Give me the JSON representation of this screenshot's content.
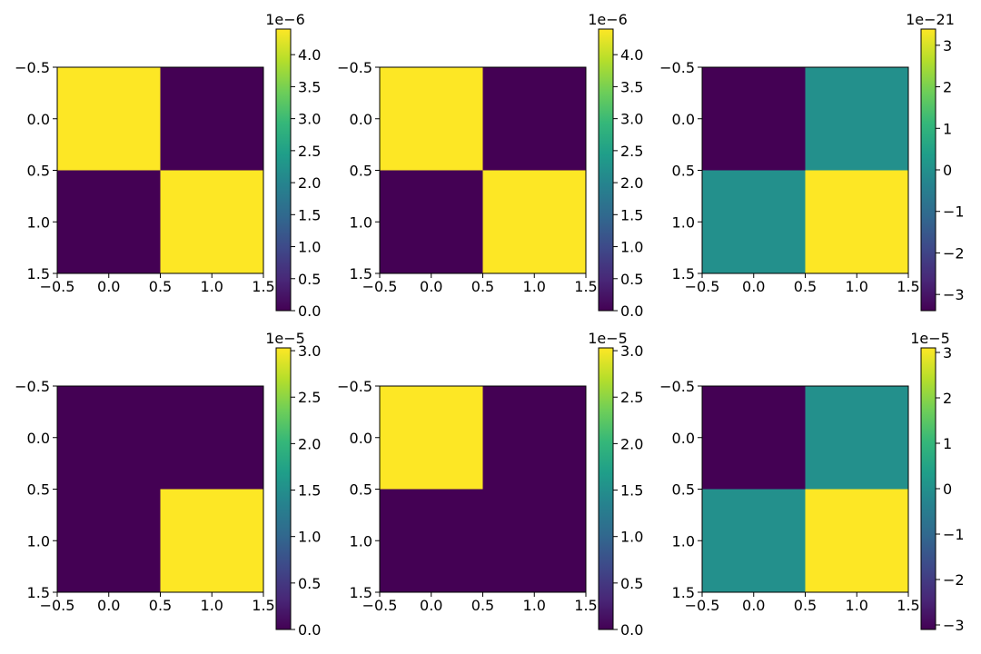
{
  "chart_data": [
    {
      "type": "heatmap",
      "title": "",
      "rows": 2,
      "cols": 2,
      "values": [
        [
          4.4e-06,
          0.0
        ],
        [
          0.0,
          4.4e-06
        ]
      ],
      "xticks": [
        "−0.5",
        "0.0",
        "0.5",
        "1.0",
        "1.5"
      ],
      "yticks": [
        "−0.5",
        "0.0",
        "0.5",
        "1.0",
        "1.5"
      ],
      "xlim": [
        -0.5,
        1.5
      ],
      "ylim": [
        1.5,
        -0.5
      ],
      "colorbar": {
        "range": [
          0.0,
          4.4
        ],
        "ticks": [
          0.0,
          0.5,
          1.0,
          1.5,
          2.0,
          2.5,
          3.0,
          3.5,
          4.0
        ],
        "labels": [
          "0.0",
          "0.5",
          "1.0",
          "1.5",
          "2.0",
          "2.5",
          "3.0",
          "3.5",
          "4.0"
        ],
        "offset_text": "1e−6"
      }
    },
    {
      "type": "heatmap",
      "title": "",
      "rows": 2,
      "cols": 2,
      "values": [
        [
          4.4e-06,
          0.0
        ],
        [
          0.0,
          4.4e-06
        ]
      ],
      "xticks": [
        "−0.5",
        "0.0",
        "0.5",
        "1.0",
        "1.5"
      ],
      "yticks": [
        "−0.5",
        "0.0",
        "0.5",
        "1.0",
        "1.5"
      ],
      "xlim": [
        -0.5,
        1.5
      ],
      "ylim": [
        1.5,
        -0.5
      ],
      "colorbar": {
        "range": [
          0.0,
          4.4
        ],
        "ticks": [
          0.0,
          0.5,
          1.0,
          1.5,
          2.0,
          2.5,
          3.0,
          3.5,
          4.0
        ],
        "labels": [
          "0.0",
          "0.5",
          "1.0",
          "1.5",
          "2.0",
          "2.5",
          "3.0",
          "3.5",
          "4.0"
        ],
        "offset_text": "1e−6"
      }
    },
    {
      "type": "heatmap",
      "title": "",
      "rows": 2,
      "cols": 2,
      "values": [
        [
          -3.39e-21,
          0.0
        ],
        [
          0.0,
          3.39e-21
        ]
      ],
      "xticks": [
        "−0.5",
        "0.0",
        "0.5",
        "1.0",
        "1.5"
      ],
      "yticks": [
        "−0.5",
        "0.0",
        "0.5",
        "1.0",
        "1.5"
      ],
      "xlim": [
        -0.5,
        1.5
      ],
      "ylim": [
        1.5,
        -0.5
      ],
      "colorbar": {
        "range": [
          -3.39,
          3.39
        ],
        "ticks": [
          -3,
          -2,
          -1,
          0,
          1,
          2,
          3
        ],
        "labels": [
          "−3",
          "−2",
          "−1",
          "0",
          "1",
          "2",
          "3"
        ],
        "offset_text": "1e−21"
      }
    },
    {
      "type": "heatmap",
      "title": "",
      "rows": 2,
      "cols": 2,
      "values": [
        [
          0.0,
          0.0
        ],
        [
          0.0,
          3.03e-05
        ]
      ],
      "xticks": [
        "−0.5",
        "0.0",
        "0.5",
        "1.0",
        "1.5"
      ],
      "yticks": [
        "−0.5",
        "0.0",
        "0.5",
        "1.0",
        "1.5"
      ],
      "xlim": [
        -0.5,
        1.5
      ],
      "ylim": [
        1.5,
        -0.5
      ],
      "colorbar": {
        "range": [
          0.0,
          3.03
        ],
        "ticks": [
          0.0,
          0.5,
          1.0,
          1.5,
          2.0,
          2.5,
          3.0
        ],
        "labels": [
          "0.0",
          "0.5",
          "1.0",
          "1.5",
          "2.0",
          "2.5",
          "3.0"
        ],
        "offset_text": "1e−5"
      }
    },
    {
      "type": "heatmap",
      "title": "",
      "rows": 2,
      "cols": 2,
      "values": [
        [
          3.03e-05,
          0.0
        ],
        [
          0.0,
          0.0
        ]
      ],
      "xticks": [
        "−0.5",
        "0.0",
        "0.5",
        "1.0",
        "1.5"
      ],
      "yticks": [
        "−0.5",
        "0.0",
        "0.5",
        "1.0",
        "1.5"
      ],
      "xlim": [
        -0.5,
        1.5
      ],
      "ylim": [
        1.5,
        -0.5
      ],
      "colorbar": {
        "range": [
          0.0,
          3.03
        ],
        "ticks": [
          0.0,
          0.5,
          1.0,
          1.5,
          2.0,
          2.5,
          3.0
        ],
        "labels": [
          "0.0",
          "0.5",
          "1.0",
          "1.5",
          "2.0",
          "2.5",
          "3.0"
        ],
        "offset_text": "1e−5"
      }
    },
    {
      "type": "heatmap",
      "title": "",
      "rows": 2,
      "cols": 2,
      "values": [
        [
          -3.1e-05,
          0.0
        ],
        [
          0.0,
          3.1e-05
        ]
      ],
      "xticks": [
        "−0.5",
        "0.0",
        "0.5",
        "1.0",
        "1.5"
      ],
      "yticks": [
        "−0.5",
        "0.0",
        "0.5",
        "1.0",
        "1.5"
      ],
      "xlim": [
        -0.5,
        1.5
      ],
      "ylim": [
        1.5,
        -0.5
      ],
      "colorbar": {
        "range": [
          -3.1,
          3.1
        ],
        "ticks": [
          -3,
          -2,
          -1,
          0,
          1,
          2,
          3
        ],
        "labels": [
          "−3",
          "−2",
          "−1",
          "0",
          "1",
          "2",
          "3"
        ],
        "offset_text": "1e−5"
      }
    }
  ],
  "colors": {
    "viridis_stops": [
      "#440154",
      "#482878",
      "#3e4989",
      "#31688e",
      "#26828e",
      "#1f9e89",
      "#35b779",
      "#6ece58",
      "#b5de2b",
      "#fde725"
    ],
    "axis": "#000000",
    "background": "#ffffff"
  }
}
